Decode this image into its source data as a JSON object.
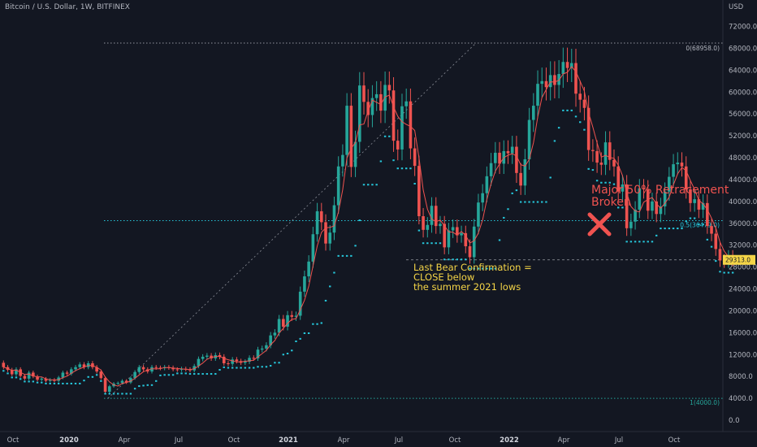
{
  "header": {
    "title": "Bitcoin / U.S. Dollar, 1W, BITFINEX"
  },
  "colors": {
    "background": "#131722",
    "up_candle": "#26a69a",
    "down_candle": "#ef5350",
    "moving_average": "#ef5350",
    "support_dots": "#26c6da",
    "fib_line": "#26c6da",
    "top_line": "#b2b5be",
    "low_fib_line": "#26a69a",
    "annotation_yellow": "#f5d547",
    "annotation_red": "#f05350",
    "price_tag": "#f5d547"
  },
  "chart_data": {
    "type": "candlestick",
    "currency_label": "USD",
    "ylim": [
      0,
      76000
    ],
    "y_ticks": [
      "72000.0",
      "68000.0",
      "64000.0",
      "60000.0",
      "56000.0",
      "52000.0",
      "48000.0",
      "44000.0",
      "40000.0",
      "36000.0",
      "32000.0",
      "28000.0",
      "24000.0",
      "20000.0",
      "16000.0",
      "12000.0",
      "8000.0",
      "4000.0",
      "0.0"
    ],
    "x_ticks": [
      {
        "label": "Oct",
        "date": "2019-10",
        "bold": false
      },
      {
        "label": "2020",
        "date": "2020-01",
        "bold": true
      },
      {
        "label": "Apr",
        "date": "2020-04",
        "bold": false
      },
      {
        "label": "Jul",
        "date": "2020-07",
        "bold": false
      },
      {
        "label": "Oct",
        "date": "2020-10",
        "bold": false
      },
      {
        "label": "2021",
        "date": "2021-01",
        "bold": true
      },
      {
        "label": "Apr",
        "date": "2021-04",
        "bold": false
      },
      {
        "label": "Jul",
        "date": "2021-07",
        "bold": false
      },
      {
        "label": "Oct",
        "date": "2021-10",
        "bold": false
      },
      {
        "label": "2022",
        "date": "2022-01",
        "bold": true
      },
      {
        "label": "Apr",
        "date": "2022-04",
        "bold": false
      },
      {
        "label": "Jul",
        "date": "2022-07",
        "bold": false
      },
      {
        "label": "Oct",
        "date": "2022-10",
        "bold": false
      }
    ],
    "candles_open_close": [
      [
        10500,
        9700
      ],
      [
        9700,
        9200
      ],
      [
        9200,
        8400
      ],
      [
        8400,
        9300
      ],
      [
        9300,
        8100
      ],
      [
        8100,
        7600
      ],
      [
        7600,
        8700
      ],
      [
        8700,
        8000
      ],
      [
        8000,
        7400
      ],
      [
        7400,
        7600
      ],
      [
        7600,
        7200
      ],
      [
        7200,
        7400
      ],
      [
        7400,
        7200
      ],
      [
        7200,
        7800
      ],
      [
        7800,
        8700
      ],
      [
        8700,
        8500
      ],
      [
        8500,
        9300
      ],
      [
        9300,
        9700
      ],
      [
        9700,
        10200
      ],
      [
        10200,
        9700
      ],
      [
        9700,
        10400
      ],
      [
        10400,
        9700
      ],
      [
        9700,
        8900
      ],
      [
        8900,
        7700
      ],
      [
        7700,
        5200
      ],
      [
        5200,
        6200
      ],
      [
        6200,
        6700
      ],
      [
        6700,
        6800
      ],
      [
        6800,
        7200
      ],
      [
        7200,
        6900
      ],
      [
        6900,
        7700
      ],
      [
        7700,
        8800
      ],
      [
        8800,
        9700
      ],
      [
        9700,
        9300
      ],
      [
        9300,
        8900
      ],
      [
        8900,
        9700
      ],
      [
        9700,
        9600
      ],
      [
        9600,
        9500
      ],
      [
        9500,
        9700
      ],
      [
        9700,
        9600
      ],
      [
        9600,
        9300
      ],
      [
        9300,
        9200
      ],
      [
        9200,
        9400
      ],
      [
        9400,
        9300
      ],
      [
        9300,
        9100
      ],
      [
        9100,
        9900
      ],
      [
        9900,
        11200
      ],
      [
        11200,
        11600
      ],
      [
        11600,
        11800
      ],
      [
        11800,
        11300
      ],
      [
        11300,
        11900
      ],
      [
        11900,
        11600
      ],
      [
        11600,
        10400
      ],
      [
        10400,
        10300
      ],
      [
        10300,
        11100
      ],
      [
        11100,
        10800
      ],
      [
        10800,
        10500
      ],
      [
        10500,
        10700
      ],
      [
        10700,
        11400
      ],
      [
        11400,
        11300
      ],
      [
        11300,
        12900
      ],
      [
        12900,
        13100
      ],
      [
        13100,
        13700
      ],
      [
        13700,
        15500
      ],
      [
        15500,
        16000
      ],
      [
        16000,
        18500
      ],
      [
        18500,
        17100
      ],
      [
        17100,
        19200
      ],
      [
        19200,
        18900
      ],
      [
        18900,
        19100
      ],
      [
        19100,
        23500
      ],
      [
        23500,
        26300
      ],
      [
        26300,
        29000
      ],
      [
        29000,
        34000
      ],
      [
        34000,
        38200
      ],
      [
        38200,
        36200
      ],
      [
        36200,
        32300
      ],
      [
        32300,
        34300
      ],
      [
        34300,
        39300
      ],
      [
        39300,
        46400
      ],
      [
        46400,
        48500
      ],
      [
        48500,
        57500
      ],
      [
        57500,
        46300
      ],
      [
        46300,
        50900
      ],
      [
        50900,
        61200
      ],
      [
        61200,
        58200
      ],
      [
        58200,
        55800
      ],
      [
        55800,
        58900
      ],
      [
        58900,
        59600
      ],
      [
        59600,
        56600
      ],
      [
        56600,
        61300
      ],
      [
        61300,
        60300
      ],
      [
        60300,
        51100
      ],
      [
        51100,
        49500
      ],
      [
        49500,
        57400
      ],
      [
        57400,
        58300
      ],
      [
        58300,
        49700
      ],
      [
        49700,
        46500
      ],
      [
        46500,
        37300
      ],
      [
        37300,
        34800
      ],
      [
        34800,
        35700
      ],
      [
        35700,
        39200
      ],
      [
        39200,
        35500
      ],
      [
        35500,
        35900
      ],
      [
        35900,
        31600
      ],
      [
        31600,
        34700
      ],
      [
        34700,
        35300
      ],
      [
        35300,
        33800
      ],
      [
        33800,
        34200
      ],
      [
        34200,
        31800
      ],
      [
        31800,
        29800
      ],
      [
        29800,
        35400
      ],
      [
        35400,
        39800
      ],
      [
        39800,
        41500
      ],
      [
        41500,
        44600
      ],
      [
        44600,
        47000
      ],
      [
        47000,
        48900
      ],
      [
        48900,
        46900
      ],
      [
        46900,
        49200
      ],
      [
        49200,
        48800
      ],
      [
        48800,
        50000
      ],
      [
        50000,
        45200
      ],
      [
        45200,
        42900
      ],
      [
        42900,
        47700
      ],
      [
        47700,
        54900
      ],
      [
        54900,
        57500
      ],
      [
        57500,
        61500
      ],
      [
        61500,
        62000
      ],
      [
        62000,
        60900
      ],
      [
        60900,
        63100
      ],
      [
        63100,
        61300
      ],
      [
        61300,
        63300
      ],
      [
        63300,
        65500
      ],
      [
        65500,
        64400
      ],
      [
        64400,
        65300
      ],
      [
        65300,
        59700
      ],
      [
        59700,
        58600
      ],
      [
        58600,
        57100
      ],
      [
        57100,
        49400
      ],
      [
        49400,
        49200
      ],
      [
        49200,
        47100
      ],
      [
        47100,
        46700
      ],
      [
        46700,
        50800
      ],
      [
        50800,
        47600
      ],
      [
        47600,
        46400
      ],
      [
        46400,
        41800
      ],
      [
        41800,
        43100
      ],
      [
        43100,
        35100
      ],
      [
        35100,
        36300
      ],
      [
        36300,
        38500
      ],
      [
        38500,
        42400
      ],
      [
        42400,
        42200
      ],
      [
        42200,
        38300
      ],
      [
        38300,
        40000
      ],
      [
        40000,
        37700
      ],
      [
        37700,
        39100
      ],
      [
        39100,
        41800
      ],
      [
        41800,
        44500
      ],
      [
        44500,
        46800
      ],
      [
        46800,
        47100
      ],
      [
        47100,
        46400
      ],
      [
        46400,
        42200
      ],
      [
        42200,
        39700
      ],
      [
        39700,
        40400
      ],
      [
        40400,
        38500
      ],
      [
        38500,
        39700
      ],
      [
        39700,
        35500
      ],
      [
        35500,
        34100
      ],
      [
        34100,
        31300
      ],
      [
        31300,
        29200
      ],
      [
        29200,
        29000
      ],
      [
        29000,
        29900
      ],
      [
        29900,
        29313
      ]
    ],
    "annotations": {
      "top_level": "0(68958.0)",
      "retracement_level": "0.5(36479.0)",
      "low_level": "1(4000.0)",
      "last_price": "29313.0",
      "bear_confirmation_lines": [
        "Last Bear Confirmation =",
        "CLOSE below",
        "the summer 2021 lows"
      ],
      "retracement_broken_lines": [
        "Major 50% Retracement",
        "Broken"
      ]
    },
    "levels": {
      "top": 68958,
      "retracement": 36479,
      "low": 4000,
      "last_price": 29313
    },
    "series": [
      {
        "type": "moving_average"
      },
      {
        "type": "support_dots"
      }
    ]
  }
}
